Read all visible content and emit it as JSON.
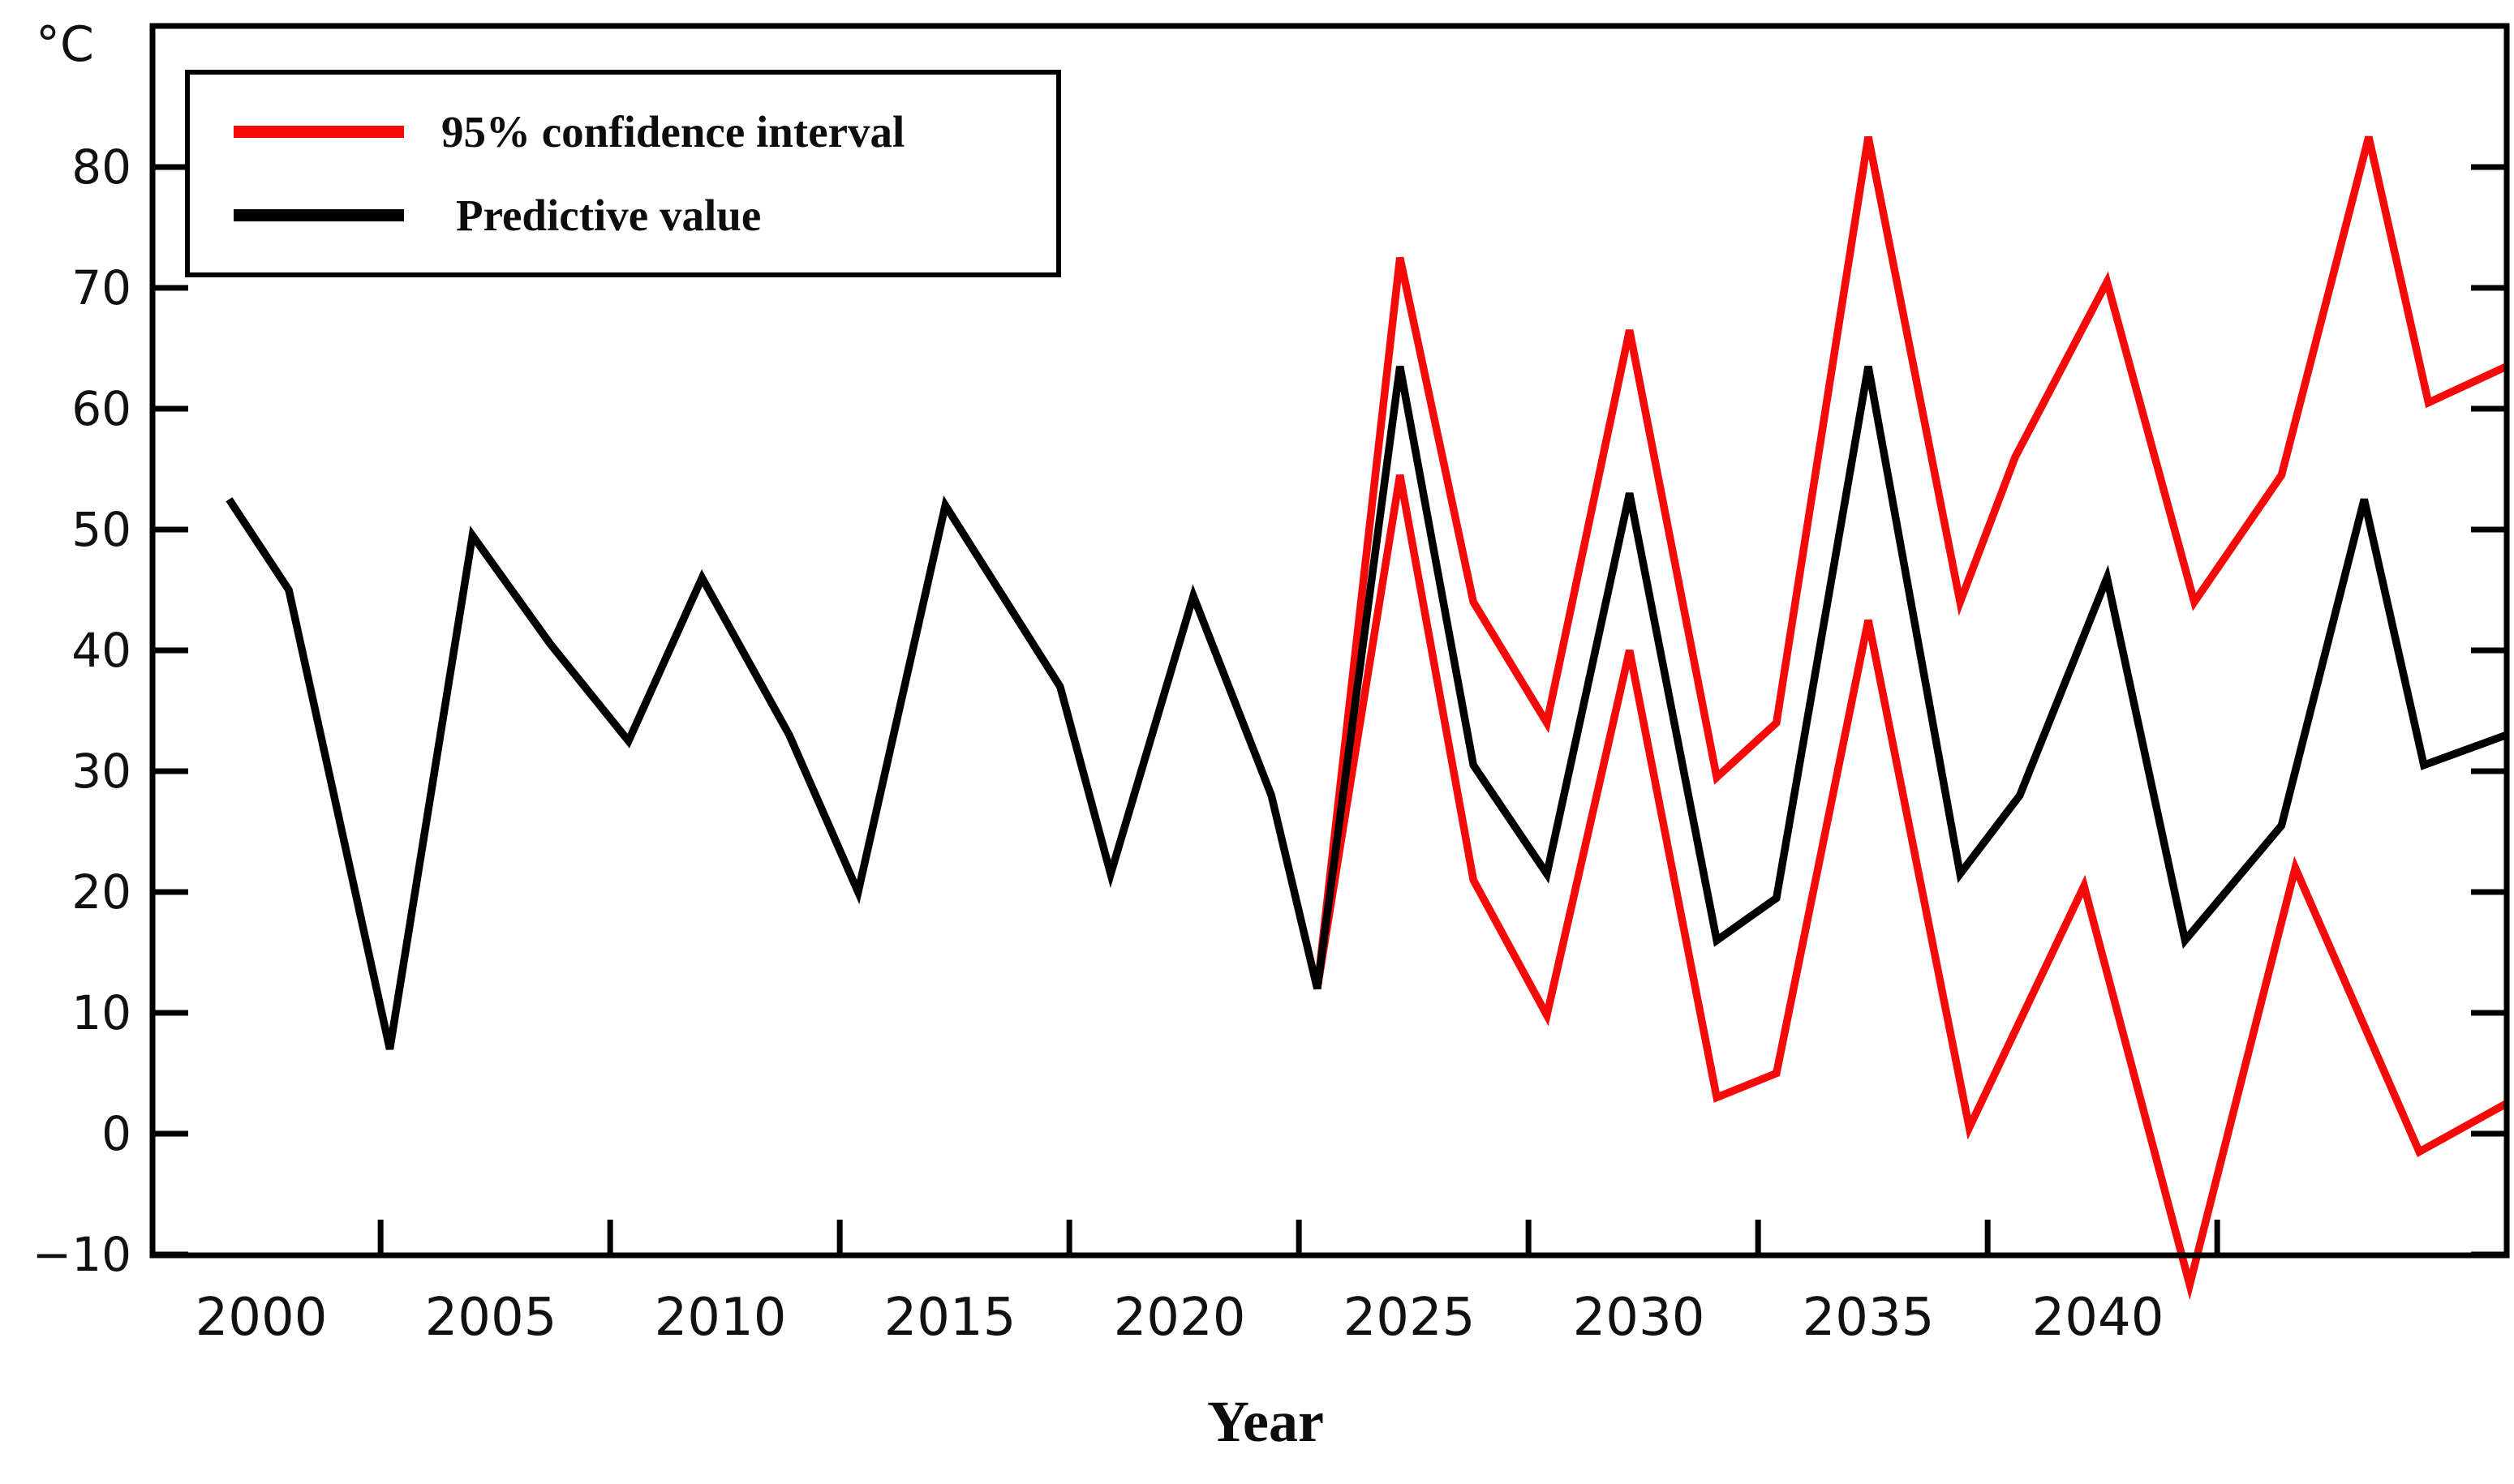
{
  "chart_data": {
    "type": "line",
    "title": "",
    "unit_label": "°C",
    "xlabel": "Year",
    "ylabel": "",
    "grid": false,
    "legend_position": "top-left",
    "x_domain": [
      1997.6,
      2048.9
    ],
    "y_domain": [
      -10,
      91.5
    ],
    "y_ticks": [
      {
        "value": 80,
        "label": "80"
      },
      {
        "value": 70,
        "label": "70"
      },
      {
        "value": 60,
        "label": "60"
      },
      {
        "value": 50,
        "label": "50"
      },
      {
        "value": 40,
        "label": "40"
      },
      {
        "value": 30,
        "label": "30"
      },
      {
        "value": 20,
        "label": "20"
      },
      {
        "value": 10,
        "label": "10"
      },
      {
        "value": 0,
        "label": "0"
      },
      {
        "value": -10,
        "label": "−10"
      }
    ],
    "x_tick_labels": [
      {
        "value": 2000,
        "label": "2000"
      },
      {
        "value": 2005,
        "label": "2005"
      },
      {
        "value": 2010,
        "label": "2010"
      },
      {
        "value": 2015,
        "label": "2015"
      },
      {
        "value": 2020,
        "label": "2020"
      },
      {
        "value": 2025,
        "label": "2025"
      },
      {
        "value": 2030,
        "label": "2030"
      },
      {
        "value": 2035,
        "label": "2035"
      },
      {
        "value": 2040,
        "label": "2040"
      }
    ],
    "x_tick_marks": [
      2002.6,
      2007.6,
      2012.6,
      2017.6,
      2022.6,
      2027.6,
      2032.6,
      2037.6,
      2042.6
    ],
    "legend": [
      {
        "label": "95% confidence interval",
        "color": "#f50a0a"
      },
      {
        "label": "Predictive value",
        "color": "#000000"
      }
    ],
    "series": [
      {
        "name": "95% confidence interval (upper bound)",
        "color": "#f50a0a",
        "points": [
          [
            2023,
            12
          ],
          [
            2024.8,
            72.5
          ],
          [
            2026.4,
            44
          ],
          [
            2028,
            34
          ],
          [
            2029.8,
            66.5
          ],
          [
            2031.7,
            29.5
          ],
          [
            2033,
            34
          ],
          [
            2035,
            82.5
          ],
          [
            2037,
            44
          ],
          [
            2038.2,
            56
          ],
          [
            2040.2,
            70.5
          ],
          [
            2042.1,
            44
          ],
          [
            2044,
            54.5
          ],
          [
            2045.9,
            82.5
          ],
          [
            2047.2,
            60.5
          ],
          [
            2048.9,
            63.5
          ]
        ]
      },
      {
        "name": "95% confidence interval (lower bound)",
        "color": "#f50a0a",
        "points": [
          [
            2023,
            12
          ],
          [
            2024.8,
            54.5
          ],
          [
            2026.4,
            21
          ],
          [
            2028,
            9.8
          ],
          [
            2029.8,
            40
          ],
          [
            2031.7,
            3
          ],
          [
            2033,
            5
          ],
          [
            2035,
            42.5
          ],
          [
            2037.2,
            0.5
          ],
          [
            2039.7,
            20.5
          ],
          [
            2042,
            -12.5
          ],
          [
            2044.3,
            22
          ],
          [
            2047,
            -1.5
          ],
          [
            2048.9,
            2.5
          ]
        ]
      },
      {
        "name": "Predictive value",
        "color": "#000000",
        "points": [
          [
            1999.3,
            52.5
          ],
          [
            2000.6,
            45
          ],
          [
            2002.8,
            7
          ],
          [
            2004.6,
            49.5
          ],
          [
            2006.3,
            40.5
          ],
          [
            2008,
            32.5
          ],
          [
            2009.6,
            46
          ],
          [
            2011.5,
            33
          ],
          [
            2013,
            20
          ],
          [
            2014.9,
            52
          ],
          [
            2017.4,
            37
          ],
          [
            2018.5,
            21.5
          ],
          [
            2020.3,
            44.5
          ],
          [
            2022,
            28
          ],
          [
            2023,
            12
          ],
          [
            2024.8,
            63.5
          ],
          [
            2026.4,
            30.5
          ],
          [
            2028,
            21.5
          ],
          [
            2029.8,
            53
          ],
          [
            2031.7,
            16
          ],
          [
            2033,
            19.5
          ],
          [
            2035,
            63.5
          ],
          [
            2037,
            21.5
          ],
          [
            2038.3,
            28
          ],
          [
            2040.2,
            46
          ],
          [
            2041.9,
            16
          ],
          [
            2044,
            25.5
          ],
          [
            2045.8,
            52.5
          ],
          [
            2047.1,
            30.5
          ],
          [
            2048.9,
            33
          ]
        ]
      }
    ]
  }
}
